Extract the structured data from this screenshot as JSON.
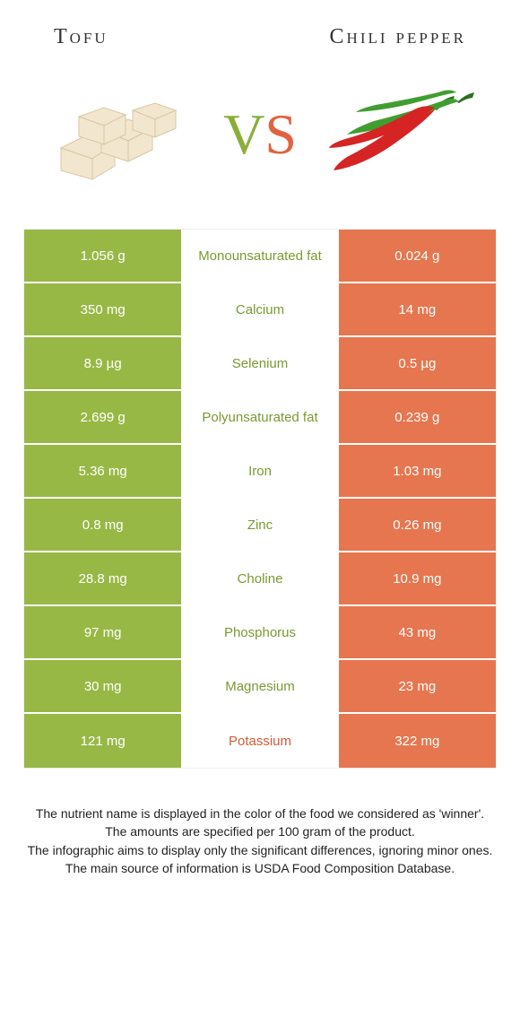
{
  "header": {
    "left_title": "Tofu",
    "right_title": "Chili pepper"
  },
  "vs": {
    "v": "V",
    "s": "S"
  },
  "colors": {
    "left_bg": "#98b846",
    "right_bg": "#e6764f",
    "left_text": "#7a9a32",
    "right_text": "#d35a36",
    "mid_bg": "#ffffff",
    "tofu_fill": "#f2e6cf",
    "tofu_stroke": "#d9c7a3",
    "chili_red": "#d62424",
    "chili_green": "#3f9e2f",
    "chili_stem": "#2f6e22"
  },
  "comparison": {
    "rows": [
      {
        "left": "1.056 g",
        "label": "Monounsaturated fat",
        "right": "0.024 g",
        "winner": "left"
      },
      {
        "left": "350 mg",
        "label": "Calcium",
        "right": "14 mg",
        "winner": "left"
      },
      {
        "left": "8.9 µg",
        "label": "Selenium",
        "right": "0.5 µg",
        "winner": "left"
      },
      {
        "left": "2.699 g",
        "label": "Polyunsaturated fat",
        "right": "0.239 g",
        "winner": "left"
      },
      {
        "left": "5.36 mg",
        "label": "Iron",
        "right": "1.03 mg",
        "winner": "left"
      },
      {
        "left": "0.8 mg",
        "label": "Zinc",
        "right": "0.26 mg",
        "winner": "left"
      },
      {
        "left": "28.8 mg",
        "label": "Choline",
        "right": "10.9 mg",
        "winner": "left"
      },
      {
        "left": "97 mg",
        "label": "Phosphorus",
        "right": "43 mg",
        "winner": "left"
      },
      {
        "left": "30 mg",
        "label": "Magnesium",
        "right": "23 mg",
        "winner": "left"
      },
      {
        "left": "121 mg",
        "label": "Potassium",
        "right": "322 mg",
        "winner": "right"
      }
    ]
  },
  "footnotes": {
    "line1": "The nutrient name is displayed in the color of the food we considered as 'winner'.",
    "line2": "The amounts are specified per 100 gram of the product.",
    "line3": "The infographic aims to display only the significant differences, ignoring minor ones.",
    "line4": "The main source of information is USDA Food Composition Database."
  }
}
